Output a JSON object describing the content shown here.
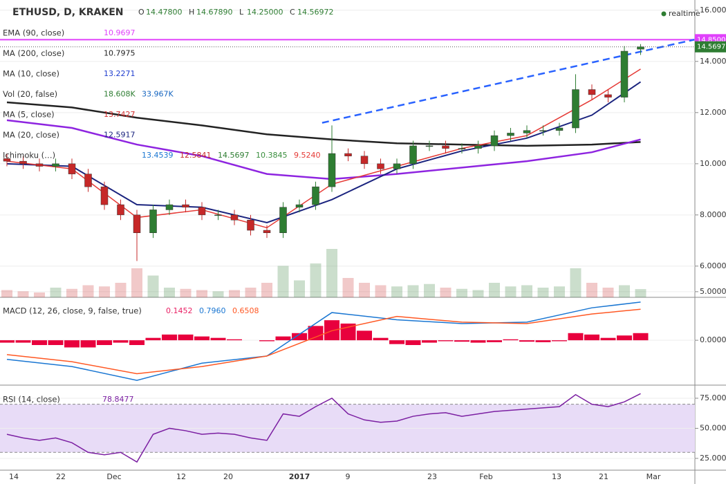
{
  "header": {
    "symbol": "ETHUSD, D, KRAKEN",
    "ohlc": [
      "O",
      "14.47800",
      "H",
      "14.67890",
      "L",
      "14.25000",
      "C",
      "14.56972"
    ],
    "status": "realtime"
  },
  "indicators": [
    {
      "name": "EMA (90, close)",
      "values": [
        "10.9697"
      ],
      "colors": [
        "#e040fb"
      ]
    },
    {
      "name": "MA (200, close)",
      "values": [
        "10.7975"
      ],
      "colors": [
        "#222222"
      ]
    },
    {
      "name": "MA (10, close)",
      "values": [
        "13.2271"
      ],
      "colors": [
        "#1e3ccf"
      ]
    },
    {
      "name": "Vol (20, false)",
      "values": [
        "18.608K",
        "33.967K"
      ],
      "colors": [
        "#2e7d32",
        "#1565c0"
      ]
    },
    {
      "name": "MA (5, close)",
      "values": [
        "13.7427"
      ],
      "colors": [
        "#d32f2f"
      ]
    },
    {
      "name": "MA (20, close)",
      "values": [
        "12.5917"
      ],
      "colors": [
        "#1a237e"
      ]
    },
    {
      "name": "Ichimoku (…)",
      "values": [
        "13.4539",
        "12.5841",
        "14.5697",
        "10.3845",
        "9.5240"
      ],
      "colors": [
        "#1976d2",
        "#c62828",
        "#2e7d32",
        "#388e3c",
        "#e53935"
      ]
    }
  ],
  "chart_data": [
    {
      "type": "candlestick",
      "ylim": [
        4.78,
        16.4
      ],
      "yticks": [
        {
          "value": 16,
          "label": "16.00000"
        },
        {
          "value": 14,
          "label": "14.00000"
        },
        {
          "value": 12,
          "label": "12.00000"
        },
        {
          "value": 10,
          "label": "10.00000"
        },
        {
          "value": 8,
          "label": "8.00000"
        },
        {
          "value": 6,
          "label": "6.00000"
        },
        {
          "value": 5,
          "label": "5.00000"
        }
      ],
      "x_labels": [
        "14",
        "22",
        "Dec",
        "12",
        "20",
        "2017",
        "9",
        "23",
        "Feb",
        "13",
        "21",
        "Mar"
      ],
      "open": [
        10.2,
        10.1,
        10.0,
        9.9,
        10.0,
        9.6,
        9.1,
        8.4,
        8.0,
        7.3,
        8.2,
        8.4,
        8.3,
        8.0,
        8.0,
        7.8,
        7.4,
        7.3,
        8.3,
        8.4,
        9.1,
        10.4,
        10.3,
        10.0,
        9.8,
        10.0,
        10.7,
        10.7,
        10.6,
        10.6,
        10.7,
        11.1,
        11.2,
        11.3,
        11.3,
        11.4,
        12.9,
        12.7,
        12.6,
        14.478
      ],
      "high": [
        10.4,
        10.3,
        10.2,
        10.2,
        10.2,
        9.8,
        9.3,
        8.6,
        8.2,
        8.4,
        8.6,
        8.6,
        8.5,
        8.2,
        8.2,
        8.0,
        7.6,
        8.5,
        8.6,
        9.3,
        11.5,
        10.6,
        10.5,
        10.2,
        10.2,
        10.9,
        10.9,
        10.9,
        10.8,
        10.9,
        11.3,
        11.4,
        11.5,
        11.5,
        11.6,
        13.5,
        13.1,
        12.9,
        14.6,
        14.6789
      ],
      "low": [
        9.9,
        9.8,
        9.7,
        9.7,
        9.4,
        8.9,
        8.2,
        7.8,
        6.2,
        7.1,
        8.0,
        8.1,
        7.8,
        7.8,
        7.6,
        7.2,
        7.1,
        7.1,
        8.1,
        8.2,
        8.9,
        10.1,
        9.8,
        9.6,
        9.6,
        9.8,
        10.5,
        10.4,
        10.4,
        10.4,
        10.5,
        10.9,
        11.0,
        11.1,
        11.1,
        11.2,
        12.5,
        12.4,
        12.4,
        14.25
      ],
      "close": [
        10.1,
        10.0,
        9.9,
        10.0,
        9.6,
        9.1,
        8.4,
        8.0,
        7.3,
        8.2,
        8.4,
        8.3,
        8.0,
        8.0,
        7.8,
        7.4,
        7.3,
        8.3,
        8.4,
        9.1,
        10.4,
        10.3,
        10.0,
        9.8,
        10.0,
        10.7,
        10.7,
        10.6,
        10.6,
        10.7,
        11.1,
        11.2,
        11.3,
        11.3,
        11.4,
        12.9,
        12.7,
        12.6,
        14.4,
        14.56972
      ],
      "up_color": "#2e7d32",
      "down_color": "#c62828",
      "volume": [
        30,
        25,
        20,
        40,
        35,
        50,
        45,
        60,
        120,
        90,
        40,
        35,
        30,
        25,
        30,
        40,
        60,
        130,
        70,
        140,
        200,
        80,
        60,
        50,
        45,
        50,
        55,
        40,
        35,
        30,
        60,
        45,
        50,
        40,
        45,
        120,
        60,
        40,
        50,
        33.967
      ],
      "lines": [
        {
          "color": "#222222",
          "width": 2.5,
          "x": [
            0,
            4,
            8,
            12,
            16,
            20,
            24,
            28,
            32,
            36,
            39
          ],
          "values": [
            12.4,
            12.2,
            11.8,
            11.5,
            11.15,
            10.95,
            10.8,
            10.75,
            10.7,
            10.75,
            10.85
          ]
        },
        {
          "color": "#8e24e0",
          "width": 2.5,
          "x": [
            0,
            4,
            8,
            12,
            16,
            20,
            24,
            28,
            32,
            36,
            39
          ],
          "values": [
            11.7,
            11.4,
            10.75,
            10.3,
            9.6,
            9.4,
            9.6,
            9.85,
            10.1,
            10.45,
            10.95
          ]
        },
        {
          "color": "#1a237e",
          "width": 2,
          "x": [
            0,
            4,
            8,
            12,
            16,
            20,
            24,
            28,
            32,
            36,
            39
          ],
          "values": [
            10.0,
            9.9,
            8.4,
            8.3,
            7.7,
            8.6,
            9.8,
            10.5,
            11.0,
            11.9,
            13.2
          ]
        },
        {
          "color": "#e53935",
          "width": 1.5,
          "x": [
            0,
            4,
            8,
            12,
            16,
            20,
            24,
            28,
            32,
            36,
            39
          ],
          "values": [
            10.1,
            9.8,
            7.9,
            8.2,
            7.5,
            9.2,
            9.9,
            10.6,
            11.1,
            12.5,
            13.7
          ]
        }
      ],
      "trendline": {
        "color": "#2962ff",
        "x": [
          19.4,
          42.3
        ],
        "values": [
          11.6,
          14.85
        ]
      },
      "hline": {
        "value": 14.85,
        "label": "14.85000",
        "color": "#e040fb"
      },
      "last": {
        "value": 14.56972,
        "label": "14.56972",
        "color": "#2e7d32"
      }
    },
    {
      "type": "macd",
      "title": "MACD (12, 26, close, 9, false, true)",
      "value_labels": [
        "0.1452",
        "0.7960",
        "0.6508"
      ],
      "label_colors": [
        "#e91e63",
        "#1976d2",
        "#ff5722"
      ],
      "ylim": [
        -0.94,
        0.9
      ],
      "yticks": [
        {
          "value": 0,
          "label": "0.0000"
        }
      ],
      "histogram": {
        "color": "#e8003d",
        "values": [
          -0.05,
          -0.05,
          -0.1,
          -0.1,
          -0.15,
          -0.15,
          -0.1,
          -0.05,
          -0.1,
          0.05,
          0.12,
          0.12,
          0.08,
          0.05,
          0.02,
          0,
          -0.02,
          0.08,
          0.15,
          0.3,
          0.42,
          0.35,
          0.2,
          0.05,
          -0.08,
          -0.1,
          -0.05,
          -0.02,
          -0.03,
          -0.05,
          -0.04,
          0.02,
          -0.03,
          -0.04,
          -0.02,
          0.15,
          0.12,
          0.05,
          0.1,
          0.15
        ]
      },
      "series": [
        {
          "color": "#1976d2",
          "x": [
            0,
            4,
            8,
            12,
            16,
            20,
            24,
            28,
            32,
            36,
            39
          ],
          "values": [
            -0.4,
            -0.55,
            -0.84,
            -0.48,
            -0.33,
            0.58,
            0.43,
            0.35,
            0.38,
            0.68,
            0.8
          ]
        },
        {
          "color": "#ff5722",
          "x": [
            0,
            4,
            8,
            12,
            16,
            20,
            24,
            28,
            32,
            36,
            39
          ],
          "values": [
            -0.3,
            -0.45,
            -0.7,
            -0.55,
            -0.33,
            0.2,
            0.5,
            0.38,
            0.35,
            0.55,
            0.65
          ]
        }
      ]
    },
    {
      "type": "rsi",
      "title": "RSI (14, close)",
      "value_label": "78.8477",
      "color": "#7b1fa2",
      "ylim": [
        15.2,
        85.9
      ],
      "yticks": [
        {
          "value": 75,
          "label": "75.0000"
        },
        {
          "value": 50,
          "label": "50.0000"
        },
        {
          "value": 25,
          "label": "25.0000"
        }
      ],
      "band": [
        70,
        30
      ],
      "values": [
        45,
        42,
        40,
        42,
        38,
        30,
        28,
        30,
        22,
        45,
        50,
        48,
        45,
        46,
        45,
        42,
        40,
        62,
        60,
        68,
        75,
        62,
        57,
        55,
        56,
        60,
        62,
        63,
        60,
        62,
        64,
        65,
        66,
        67,
        68,
        78,
        70,
        68,
        72,
        78.8477
      ]
    }
  ]
}
